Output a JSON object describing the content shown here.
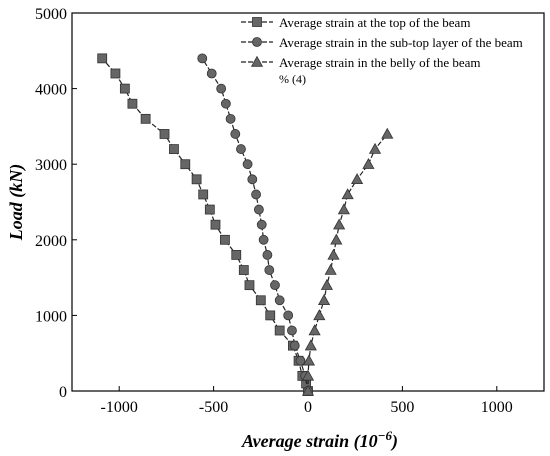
{
  "chart_data": {
    "type": "line",
    "title": "",
    "xlabel_main": "Average strain (10",
    "xlabel_sup": "−6",
    "xlabel_tail": ")",
    "ylabel": "Load (kN)",
    "xlim": [
      -1250,
      1250
    ],
    "ylim": [
      0,
      5000
    ],
    "x_ticks": [
      -1000,
      -500,
      0,
      500,
      1000
    ],
    "y_ticks": [
      0,
      1000,
      2000,
      3000,
      4000,
      5000
    ],
    "grid": false,
    "legend_position": "top-right",
    "legend_note": "% (4)",
    "series": [
      {
        "name": "Average strain at the top of the beam",
        "marker": "square",
        "color": "#666666",
        "points": [
          [
            0,
            0
          ],
          [
            -10,
            100
          ],
          [
            -30,
            200
          ],
          [
            -50,
            400
          ],
          [
            -80,
            600
          ],
          [
            -150,
            800
          ],
          [
            -200,
            1000
          ],
          [
            -250,
            1200
          ],
          [
            -310,
            1400
          ],
          [
            -340,
            1600
          ],
          [
            -380,
            1800
          ],
          [
            -440,
            2000
          ],
          [
            -490,
            2200
          ],
          [
            -520,
            2400
          ],
          [
            -555,
            2600
          ],
          [
            -590,
            2800
          ],
          [
            -650,
            3000
          ],
          [
            -710,
            3200
          ],
          [
            -760,
            3400
          ],
          [
            -860,
            3600
          ],
          [
            -930,
            3800
          ],
          [
            -970,
            4000
          ],
          [
            -1020,
            4200
          ],
          [
            -1090,
            4400
          ]
        ]
      },
      {
        "name": "Average strain in the sub-top layer of the beam",
        "marker": "circle",
        "color": "#666666",
        "points": [
          [
            0,
            0
          ],
          [
            -15,
            200
          ],
          [
            -40,
            400
          ],
          [
            -70,
            600
          ],
          [
            -85,
            800
          ],
          [
            -105,
            1000
          ],
          [
            -150,
            1200
          ],
          [
            -175,
            1400
          ],
          [
            -205,
            1600
          ],
          [
            -215,
            1800
          ],
          [
            -235,
            2000
          ],
          [
            -245,
            2200
          ],
          [
            -260,
            2400
          ],
          [
            -275,
            2600
          ],
          [
            -295,
            2800
          ],
          [
            -320,
            3000
          ],
          [
            -355,
            3200
          ],
          [
            -385,
            3400
          ],
          [
            -410,
            3600
          ],
          [
            -435,
            3800
          ],
          [
            -460,
            4000
          ],
          [
            -510,
            4200
          ],
          [
            -560,
            4400
          ]
        ]
      },
      {
        "name": "Average strain in the belly of the beam",
        "marker": "triangle",
        "color": "#666666",
        "points": [
          [
            0,
            0
          ],
          [
            0,
            200
          ],
          [
            5,
            400
          ],
          [
            15,
            600
          ],
          [
            35,
            800
          ],
          [
            60,
            1000
          ],
          [
            85,
            1200
          ],
          [
            100,
            1400
          ],
          [
            120,
            1600
          ],
          [
            135,
            1800
          ],
          [
            150,
            2000
          ],
          [
            165,
            2200
          ],
          [
            190,
            2400
          ],
          [
            210,
            2600
          ],
          [
            260,
            2800
          ],
          [
            320,
            3000
          ],
          [
            355,
            3200
          ],
          [
            420,
            3400
          ]
        ]
      }
    ]
  }
}
